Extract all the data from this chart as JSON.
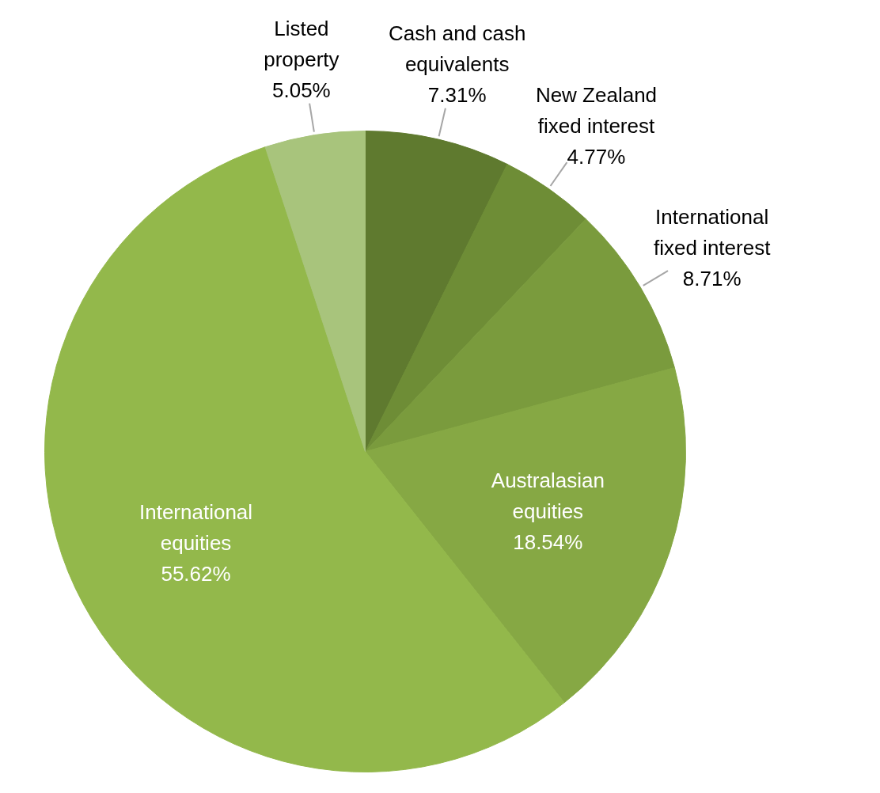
{
  "chart_data": {
    "type": "pie",
    "categories": [
      "Cash and cash equivalents",
      "New Zealand fixed interest",
      "International fixed interest",
      "Australasian equities",
      "International equities",
      "Listed property"
    ],
    "values": [
      7.31,
      4.77,
      8.71,
      18.54,
      55.62,
      5.05
    ],
    "value_labels": [
      "7.31%",
      "4.77%",
      "8.71%",
      "18.54%",
      "55.62%",
      "5.05%"
    ],
    "colors": [
      "#5f7a2f",
      "#6e8d36",
      "#7a9b3d",
      "#86a844",
      "#93b84b",
      "#a8c47c"
    ]
  }
}
